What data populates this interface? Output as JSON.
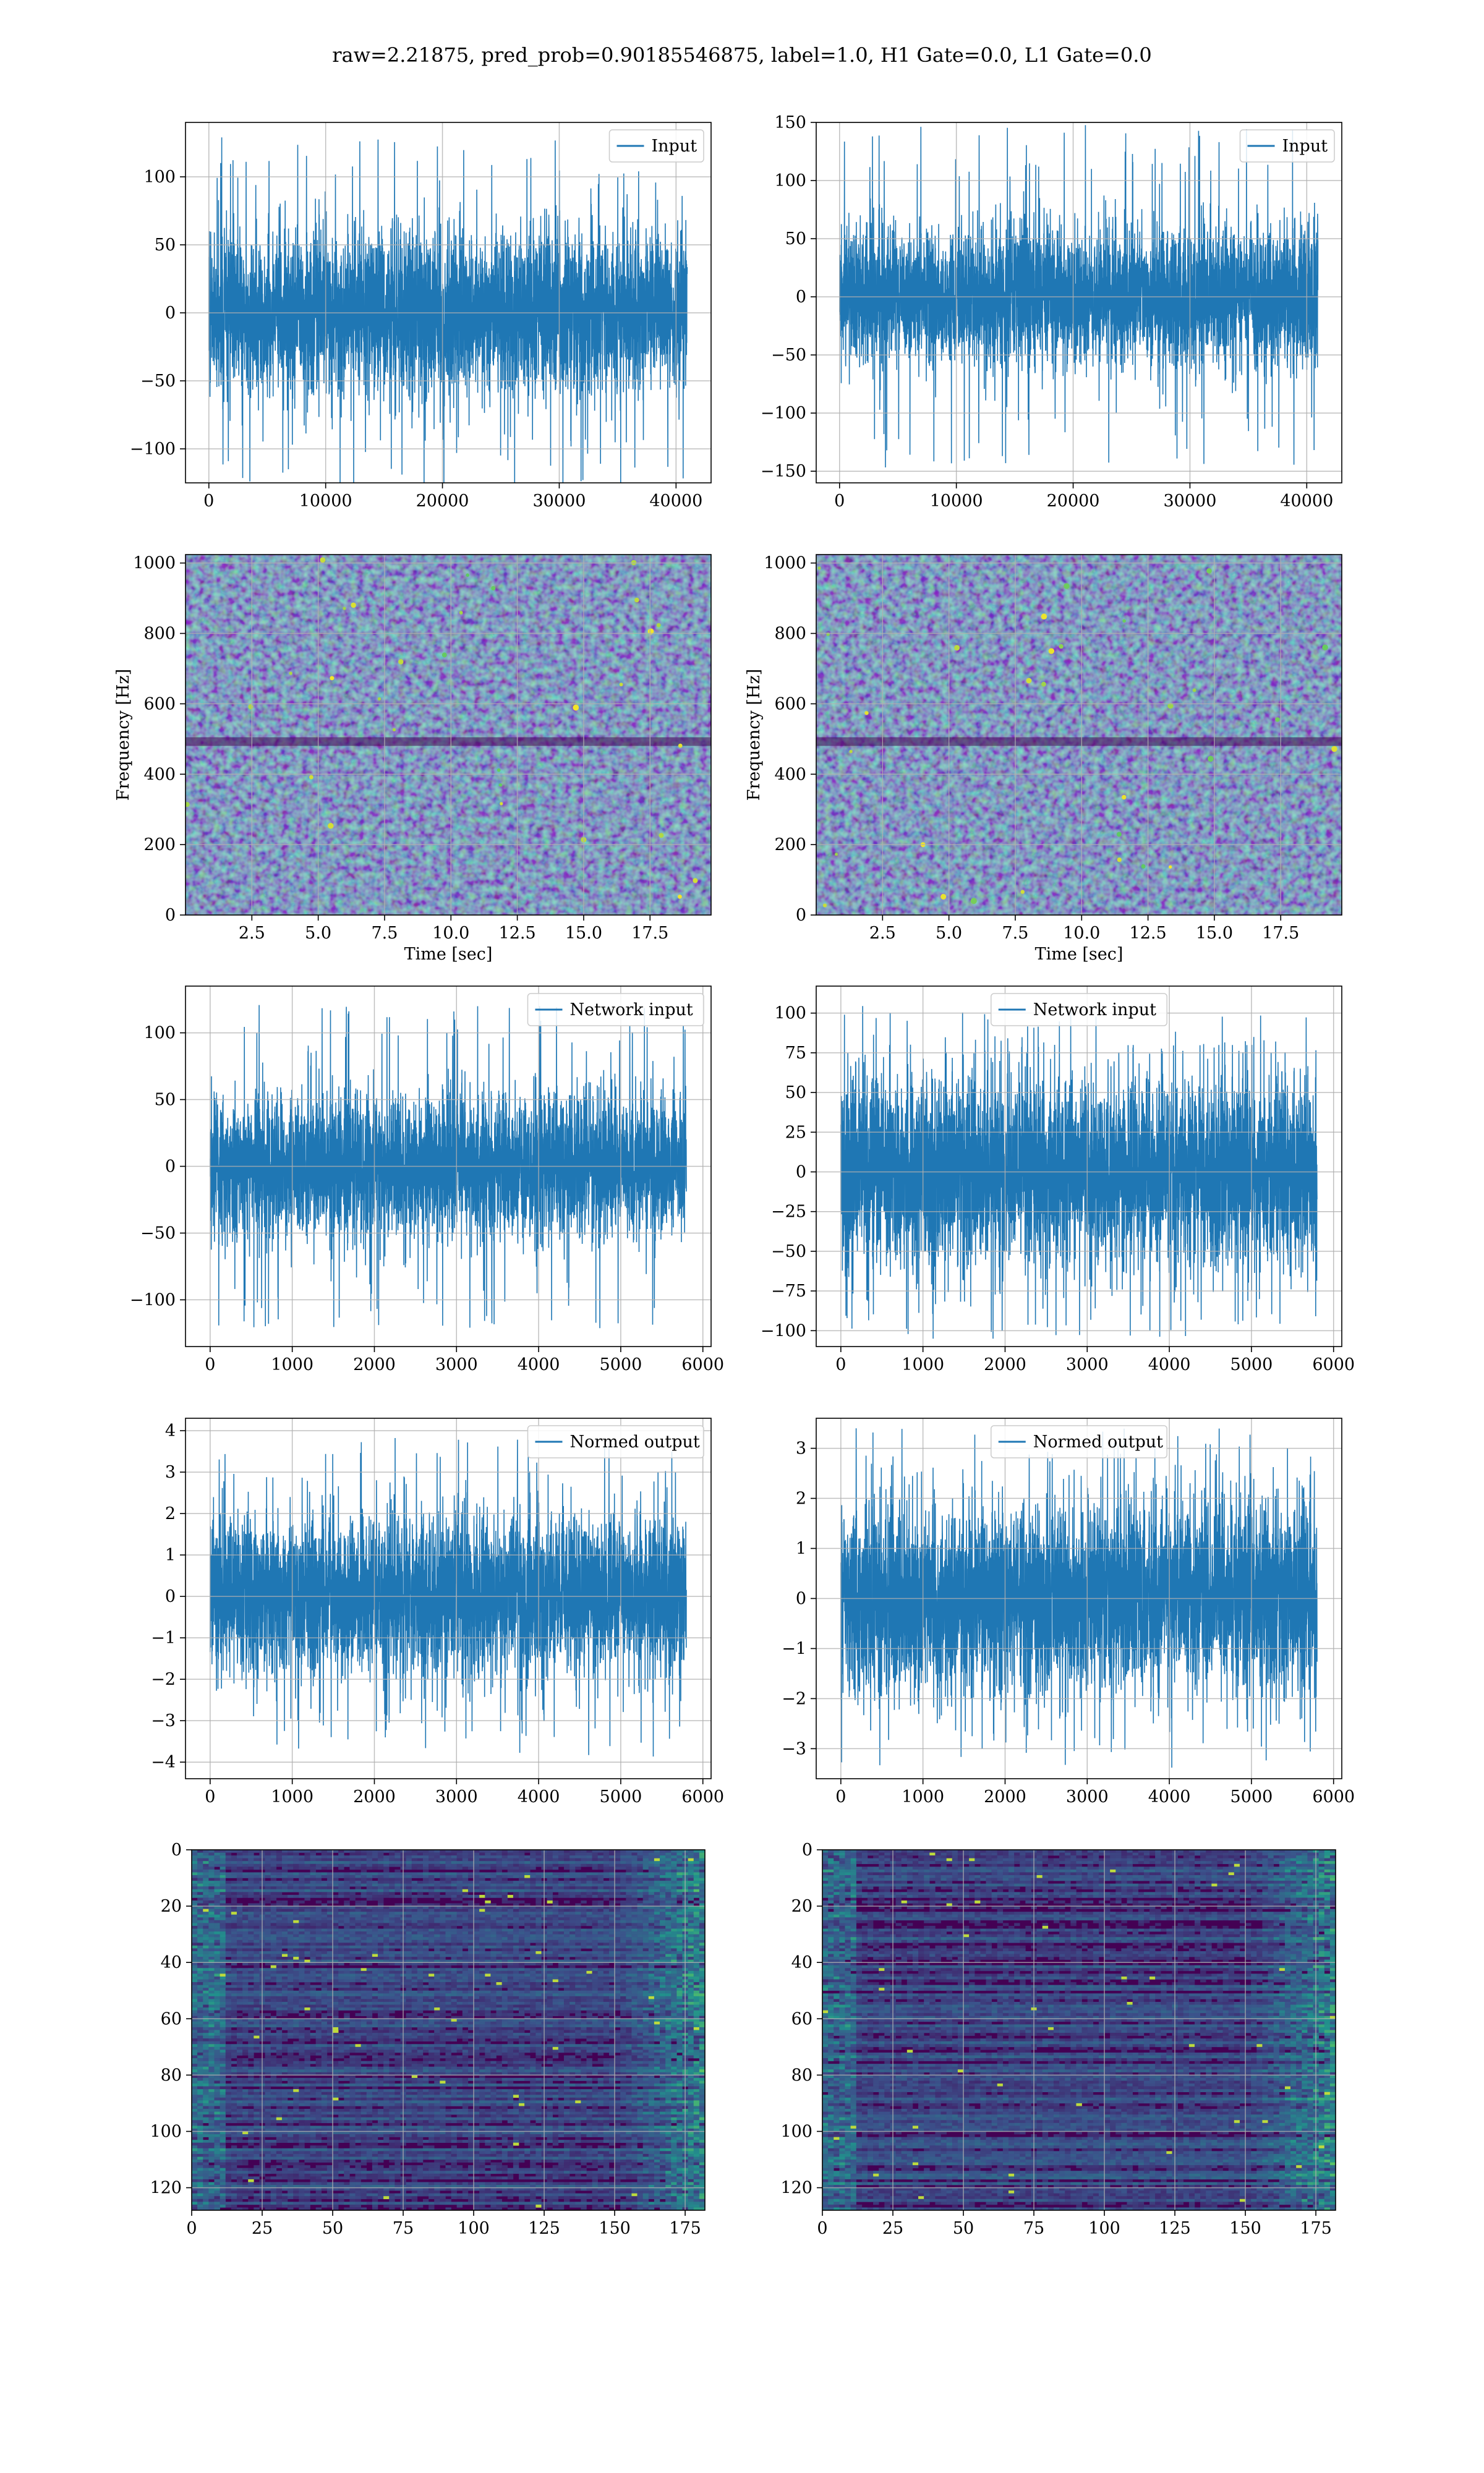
{
  "figure": {
    "suptitle": "raw=2.21875, pred_prob=0.90185546875, label=1.0, H1 Gate=0.0, L1 Gate=0.0"
  },
  "colors": {
    "series": "#1f77b4",
    "grid": "#b0b0b0",
    "viridis_dark": "#440154",
    "viridis_mid": "#21918c",
    "viridis_bright": "#fde725"
  },
  "chart_data": [
    {
      "id": "row1-left",
      "type": "line",
      "style": "noise",
      "legend": "Input",
      "legend_loc": "upper right",
      "n_points": 40960,
      "amplitude_rms": 22,
      "peak_abs": 130,
      "xlim": [
        -2000,
        43000
      ],
      "ylim": [
        -125,
        140
      ],
      "xticks": [
        0,
        10000,
        20000,
        30000,
        40000
      ],
      "yticks": [
        -100,
        -50,
        0,
        50,
        100
      ],
      "xlabel": "",
      "ylabel": "",
      "grid": true
    },
    {
      "id": "row1-right",
      "type": "line",
      "style": "noise",
      "legend": "Input",
      "legend_loc": "upper right",
      "n_points": 40960,
      "amplitude_rms": 22,
      "peak_abs": 148,
      "xlim": [
        -2000,
        43000
      ],
      "ylim": [
        -160,
        150
      ],
      "xticks": [
        0,
        10000,
        20000,
        30000,
        40000
      ],
      "yticks": [
        -150,
        -100,
        -50,
        0,
        50,
        100,
        150
      ],
      "xlabel": "",
      "ylabel": "",
      "grid": true
    },
    {
      "id": "row2-left",
      "type": "heatmap",
      "style": "spectrogram",
      "xlim": [
        0,
        19.8
      ],
      "ylim": [
        0,
        1024
      ],
      "xticks": [
        2.5,
        5.0,
        7.5,
        10.0,
        12.5,
        15.0,
        17.5
      ],
      "yticks": [
        0,
        200,
        400,
        600,
        800,
        1000
      ],
      "xlabel": "Time [sec]",
      "ylabel": "Frequency [Hz]",
      "grid": true,
      "colormap": "viridis"
    },
    {
      "id": "row2-right",
      "type": "heatmap",
      "style": "spectrogram",
      "xlim": [
        0,
        19.8
      ],
      "ylim": [
        0,
        1024
      ],
      "xticks": [
        2.5,
        5.0,
        7.5,
        10.0,
        12.5,
        15.0,
        17.5
      ],
      "yticks": [
        0,
        200,
        400,
        600,
        800,
        1000
      ],
      "xlabel": "Time [sec]",
      "ylabel": "Frequency [Hz]",
      "grid": true,
      "colormap": "viridis"
    },
    {
      "id": "row3-left",
      "type": "line",
      "style": "noise",
      "legend": "Network input",
      "legend_loc": "upper right",
      "n_points": 5800,
      "amplitude_rms": 20,
      "peak_abs": 122,
      "xlim": [
        -300,
        6100
      ],
      "ylim": [
        -135,
        135
      ],
      "xticks": [
        0,
        1000,
        2000,
        3000,
        4000,
        5000,
        6000
      ],
      "yticks": [
        -100,
        -50,
        0,
        50,
        100
      ],
      "xlabel": "",
      "ylabel": "",
      "grid": true
    },
    {
      "id": "row3-right",
      "type": "line",
      "style": "noise",
      "legend": "Network input",
      "legend_loc": "upper center",
      "n_points": 5800,
      "amplitude_rms": 22,
      "peak_abs": 105,
      "xlim": [
        -300,
        6100
      ],
      "ylim": [
        -110,
        117
      ],
      "xticks": [
        0,
        1000,
        2000,
        3000,
        4000,
        5000,
        6000
      ],
      "yticks": [
        -100,
        -75,
        -50,
        -25,
        0,
        25,
        50,
        75,
        100
      ],
      "xlabel": "",
      "ylabel": "",
      "grid": true
    },
    {
      "id": "row4-left",
      "type": "line",
      "style": "noise",
      "legend": "Normed output",
      "legend_loc": "upper right",
      "n_points": 5800,
      "amplitude_rms": 0.7,
      "peak_abs": 3.9,
      "xlim": [
        -300,
        6100
      ],
      "ylim": [
        -4.4,
        4.3
      ],
      "xticks": [
        0,
        1000,
        2000,
        3000,
        4000,
        5000,
        6000
      ],
      "yticks": [
        -4,
        -3,
        -2,
        -1,
        0,
        1,
        2,
        3,
        4
      ],
      "xlabel": "",
      "ylabel": "",
      "grid": true
    },
    {
      "id": "row4-right",
      "type": "line",
      "style": "noise",
      "legend": "Normed output",
      "legend_loc": "upper center",
      "n_points": 5800,
      "amplitude_rms": 0.7,
      "peak_abs": 3.4,
      "xlim": [
        -300,
        6100
      ],
      "ylim": [
        -3.6,
        3.6
      ],
      "xticks": [
        0,
        1000,
        2000,
        3000,
        4000,
        5000,
        6000
      ],
      "yticks": [
        -3,
        -2,
        -1,
        0,
        1,
        2,
        3
      ],
      "xlabel": "",
      "ylabel": "",
      "grid": true
    },
    {
      "id": "row5-left",
      "type": "heatmap",
      "style": "feature_map",
      "rows": 128,
      "cols": 182,
      "xlim": [
        0,
        182
      ],
      "ylim": [
        128,
        0
      ],
      "xticks": [
        0,
        25,
        50,
        75,
        100,
        125,
        150,
        175
      ],
      "yticks": [
        0,
        20,
        40,
        60,
        80,
        100,
        120
      ],
      "xlabel": "",
      "ylabel": "",
      "grid": true,
      "colormap": "viridis"
    },
    {
      "id": "row5-right",
      "type": "heatmap",
      "style": "feature_map",
      "rows": 128,
      "cols": 182,
      "xlim": [
        0,
        182
      ],
      "ylim": [
        128,
        0
      ],
      "xticks": [
        0,
        25,
        50,
        75,
        100,
        125,
        150,
        175
      ],
      "yticks": [
        0,
        20,
        40,
        60,
        80,
        100,
        120
      ],
      "xlabel": "",
      "ylabel": "",
      "grid": true,
      "colormap": "viridis"
    }
  ]
}
